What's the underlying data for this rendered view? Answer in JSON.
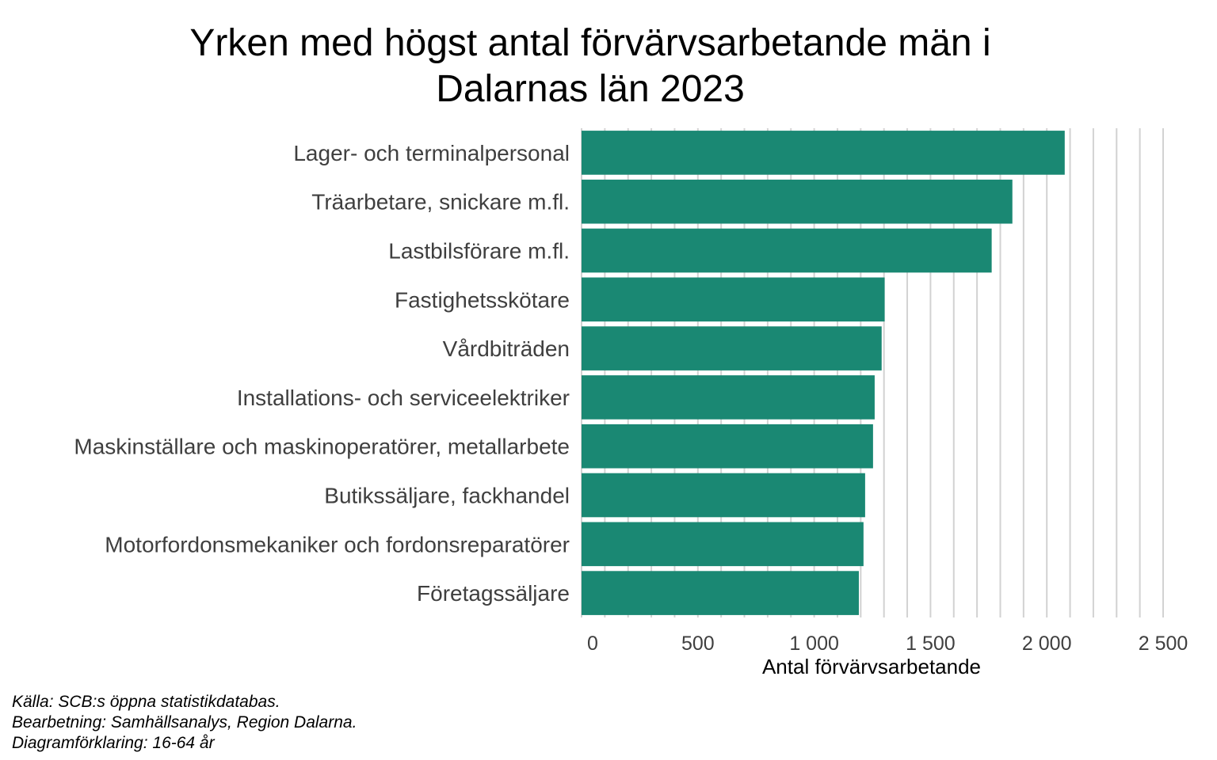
{
  "chart_data": {
    "type": "bar",
    "orientation": "horizontal",
    "title_lines": [
      "Yrken med högst antal förvärvsarbetande män i",
      "Dalarnas län 2023"
    ],
    "categories": [
      "Lager- och terminalpersonal",
      "Träarbetare, snickare m.fl.",
      "Lastbilsförare m.fl.",
      "Fastighetsskötare",
      "Vårdbiträden",
      "Installations- och serviceelektriker",
      "Maskinställare och maskinoperatörer, metallarbete",
      "Butikssäljare, fackhandel",
      "Motorfordonsmekaniker och fordonsreparatörer",
      "Företagssäljare"
    ],
    "values": [
      2077,
      1852,
      1763,
      1303,
      1290,
      1260,
      1253,
      1219,
      1212,
      1192
    ],
    "xlabel": "Antal förvärvsarbetande",
    "ylabel": "",
    "xlim": [
      0,
      2500
    ],
    "x_ticks": [
      0,
      500,
      1000,
      1500,
      2000,
      2500
    ],
    "x_tick_labels": [
      "0",
      "500",
      "1 000",
      "1 500",
      "2 000",
      "2 500"
    ],
    "grid": "vertical",
    "bar_color": "#1a8873",
    "grid_color": "#d2d2d2"
  },
  "caption": {
    "source": "Källa: SCB:s öppna statistikdatabas.",
    "processing": "Bearbetning: Samhällsanalys, Region Dalarna.",
    "explanation": "Diagramförklaring: 16-64 år"
  }
}
